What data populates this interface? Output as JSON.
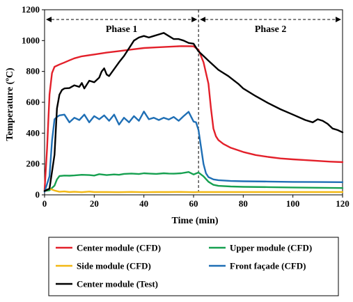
{
  "chart_data": {
    "type": "line",
    "title": "",
    "xlabel": "Time (min)",
    "ylabel": "Temperature (ºC)",
    "xlim": [
      0,
      120
    ],
    "ylim": [
      0,
      1200
    ],
    "xticks": [
      0,
      20,
      40,
      60,
      80,
      100,
      120
    ],
    "yticks": [
      0,
      200,
      400,
      600,
      800,
      1000,
      1200
    ],
    "grid": false,
    "legend_position": "bottom",
    "phase_divider_x": 62,
    "phases": [
      {
        "label": "Phase 1",
        "from": 0,
        "to": 62
      },
      {
        "label": "Phase 2",
        "from": 62,
        "to": 120
      }
    ],
    "series": [
      {
        "name": "Center module (CFD)",
        "color": "#e3202a",
        "x": [
          0,
          1,
          2,
          3,
          4,
          6,
          8,
          10,
          12,
          15,
          20,
          25,
          30,
          35,
          40,
          45,
          50,
          55,
          60,
          62,
          64,
          66,
          67,
          68,
          69,
          70,
          72,
          75,
          80,
          85,
          90,
          95,
          100,
          105,
          110,
          115,
          120
        ],
        "y": [
          30,
          300,
          650,
          790,
          830,
          845,
          858,
          872,
          885,
          898,
          910,
          922,
          932,
          942,
          952,
          956,
          960,
          964,
          963,
          940,
          860,
          720,
          560,
          430,
          380,
          355,
          330,
          305,
          278,
          258,
          246,
          236,
          230,
          225,
          220,
          215,
          212
        ]
      },
      {
        "name": "Upper module (CFD)",
        "color": "#16a050",
        "x": [
          0,
          2,
          4,
          5,
          6,
          8,
          10,
          12,
          15,
          18,
          20,
          22,
          25,
          28,
          30,
          32,
          35,
          38,
          40,
          42,
          45,
          48,
          50,
          52,
          55,
          58,
          60,
          62,
          64,
          66,
          68,
          70,
          75,
          80,
          90,
          100,
          110,
          120
        ],
        "y": [
          25,
          30,
          60,
          100,
          122,
          125,
          124,
          126,
          130,
          128,
          125,
          134,
          128,
          132,
          130,
          136,
          138,
          135,
          140,
          138,
          136,
          140,
          138,
          137,
          140,
          148,
          132,
          145,
          120,
          85,
          65,
          58,
          54,
          52,
          50,
          48,
          46,
          44
        ]
      },
      {
        "name": "Side module (CFD)",
        "color": "#f2b813",
        "x": [
          0,
          2,
          4,
          6,
          8,
          10,
          12,
          15,
          18,
          20,
          25,
          30,
          35,
          40,
          45,
          50,
          55,
          60,
          62,
          65,
          70,
          80,
          90,
          100,
          110,
          120
        ],
        "y": [
          25,
          40,
          28,
          20,
          22,
          18,
          20,
          17,
          21,
          18,
          18,
          17,
          19,
          17,
          18,
          18,
          19,
          17,
          18,
          18,
          18,
          18,
          18,
          18,
          18,
          18
        ]
      },
      {
        "name": "Front façade (CFD)",
        "color": "#1f6fb5",
        "x": [
          0,
          2,
          3,
          4,
          5,
          6,
          8,
          10,
          12,
          14,
          16,
          18,
          20,
          22,
          24,
          26,
          28,
          30,
          32,
          34,
          36,
          38,
          40,
          42,
          44,
          46,
          48,
          50,
          52,
          54,
          56,
          58,
          60,
          61,
          62,
          63,
          64,
          65,
          66,
          68,
          70,
          75,
          80,
          90,
          100,
          110,
          120
        ],
        "y": [
          20,
          120,
          350,
          490,
          505,
          515,
          520,
          470,
          500,
          485,
          520,
          470,
          510,
          490,
          515,
          480,
          520,
          455,
          500,
          470,
          510,
          480,
          540,
          490,
          500,
          485,
          500,
          488,
          505,
          480,
          510,
          538,
          475,
          470,
          420,
          310,
          200,
          140,
          115,
          100,
          95,
          90,
          88,
          86,
          84,
          83,
          82
        ]
      },
      {
        "name": "Center module (Test)",
        "color": "#000000",
        "x": [
          0,
          2,
          4,
          5,
          6,
          7,
          8,
          10,
          12,
          14,
          15,
          16,
          18,
          20,
          22,
          23,
          24,
          25,
          26,
          28,
          30,
          32,
          34,
          36,
          38,
          40,
          42,
          44,
          46,
          48,
          50,
          52,
          54,
          56,
          58,
          60,
          62,
          64,
          66,
          68,
          70,
          72,
          74,
          76,
          78,
          80,
          85,
          90,
          95,
          100,
          105,
          108,
          110,
          112,
          114,
          116,
          118,
          120
        ],
        "y": [
          25,
          40,
          260,
          560,
          650,
          680,
          690,
          692,
          710,
          700,
          725,
          690,
          740,
          730,
          760,
          800,
          820,
          780,
          770,
          815,
          860,
          900,
          950,
          1000,
          1020,
          1030,
          1020,
          1030,
          1040,
          1050,
          1030,
          1010,
          1010,
          1000,
          985,
          980,
          930,
          900,
          870,
          840,
          810,
          790,
          770,
          745,
          720,
          690,
          640,
          595,
          555,
          520,
          485,
          470,
          490,
          480,
          460,
          430,
          420,
          405
        ]
      }
    ]
  }
}
